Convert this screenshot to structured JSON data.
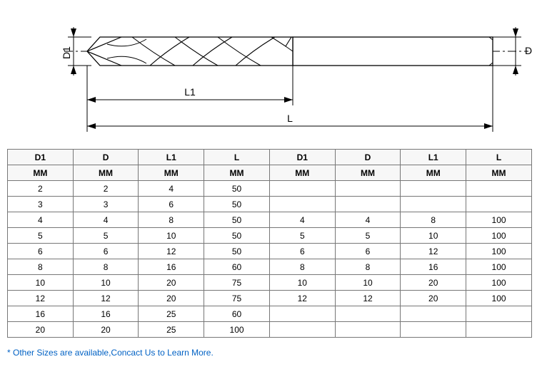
{
  "diagram": {
    "labels": {
      "d1": "D1",
      "d": "D",
      "l1": "L1",
      "l": "L"
    },
    "stroke": "#000000",
    "dim_stroke": "#000000",
    "centerline_dash": "6,4,2,4",
    "fill": "#ffffff"
  },
  "table": {
    "headers1": [
      "D1",
      "D",
      "L1",
      "L",
      "D1",
      "D",
      "L1",
      "L"
    ],
    "headers2": [
      "MM",
      "MM",
      "MM",
      "MM",
      "MM",
      "MM",
      "MM",
      "MM"
    ],
    "rows": [
      [
        "2",
        "2",
        "4",
        "50",
        "",
        "",
        "",
        ""
      ],
      [
        "3",
        "3",
        "6",
        "50",
        "",
        "",
        "",
        ""
      ],
      [
        "4",
        "4",
        "8",
        "50",
        "4",
        "4",
        "8",
        "100"
      ],
      [
        "5",
        "5",
        "10",
        "50",
        "5",
        "5",
        "10",
        "100"
      ],
      [
        "6",
        "6",
        "12",
        "50",
        "6",
        "6",
        "12",
        "100"
      ],
      [
        "8",
        "8",
        "16",
        "60",
        "8",
        "8",
        "16",
        "100"
      ],
      [
        "10",
        "10",
        "20",
        "75",
        "10",
        "10",
        "20",
        "100"
      ],
      [
        "12",
        "12",
        "20",
        "75",
        "12",
        "12",
        "20",
        "100"
      ],
      [
        "16",
        "16",
        "25",
        "60",
        "",
        "",
        "",
        ""
      ],
      [
        "20",
        "20",
        "25",
        "100",
        "",
        "",
        "",
        ""
      ]
    ]
  },
  "note": "* Other Sizes are available,Concact Us to Learn More."
}
